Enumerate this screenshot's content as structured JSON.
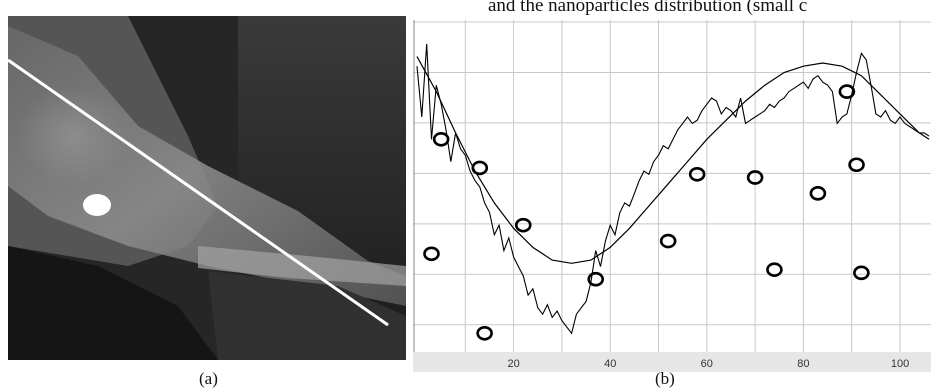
{
  "caption_fragment": "and the nanoparticles distribution (small c",
  "panel_labels": {
    "a": "(a)",
    "b": "(b)"
  },
  "colors": {
    "plot_bg": "#ffffff",
    "grid": "#c8c8c8",
    "curve": "#000000",
    "axis_bar": "#e6e6e6"
  },
  "chart_data": {
    "type": "line",
    "title": "",
    "xlabel": "",
    "ylabel": "",
    "xlim": [
      0,
      106
    ],
    "ylim": [
      0,
      100
    ],
    "x_ticks": [
      20,
      40,
      60,
      80,
      100
    ],
    "grid": true,
    "legend": "none",
    "series": [
      {
        "style": "noisy",
        "x": [
          0,
          1,
          2,
          3,
          4,
          5,
          6,
          7,
          8,
          9,
          10,
          11,
          12,
          13,
          14,
          15,
          16,
          17,
          18,
          19,
          20,
          21,
          22,
          23,
          24,
          25,
          26,
          27,
          28,
          29,
          30,
          31,
          32,
          33,
          34,
          35,
          36,
          37,
          38,
          39,
          40,
          41,
          42,
          43,
          44,
          45,
          46,
          47,
          48,
          49,
          50,
          51,
          52,
          53,
          54,
          55,
          56,
          57,
          58,
          59,
          60,
          61,
          62,
          63,
          64,
          65,
          66,
          67,
          68,
          69,
          70,
          71,
          72,
          73,
          74,
          75,
          76,
          77,
          78,
          79,
          80,
          81,
          82,
          83,
          84,
          85,
          86,
          87,
          88,
          89,
          90,
          91,
          92,
          93,
          94,
          95,
          96,
          97,
          98,
          99,
          100,
          101,
          102,
          103,
          104,
          105,
          106
        ],
        "y": [
          88,
          72,
          95,
          65,
          82,
          76,
          68,
          58,
          67,
          62,
          60,
          55,
          52,
          50,
          45,
          42,
          35,
          38,
          30,
          34,
          28,
          25,
          22,
          16,
          18,
          12,
          10,
          13,
          9,
          11,
          8,
          6,
          4,
          10,
          12,
          14,
          20,
          30,
          25,
          33,
          38,
          35,
          42,
          45,
          44,
          48,
          52,
          55,
          54,
          58,
          60,
          63,
          62,
          65,
          68,
          70,
          72,
          70,
          71,
          74,
          76,
          78,
          77,
          73,
          75,
          74,
          72,
          78,
          70,
          71,
          72,
          73,
          74,
          76,
          75,
          77,
          78,
          80,
          81,
          82,
          83,
          81,
          84,
          85,
          83,
          82,
          80,
          70,
          72,
          73,
          79,
          86,
          92,
          90,
          82,
          73,
          72,
          74,
          71,
          70,
          72,
          70,
          69,
          68,
          67,
          67,
          66
        ]
      },
      {
        "style": "smooth",
        "x": [
          0,
          4,
          8,
          12,
          16,
          20,
          24,
          28,
          32,
          36,
          40,
          44,
          48,
          52,
          56,
          60,
          64,
          68,
          72,
          76,
          80,
          84,
          88,
          92,
          96,
          100,
          104,
          106
        ],
        "y": [
          91,
          80,
          67,
          55,
          45,
          37,
          31,
          27,
          26,
          27,
          31,
          37,
          44,
          51,
          58,
          65,
          71,
          77,
          82,
          86,
          88,
          89,
          88,
          85,
          79,
          73,
          67,
          65
        ]
      }
    ],
    "nanoparticles": {
      "x": [
        5,
        13,
        22,
        37,
        52,
        58,
        70,
        74,
        83,
        89,
        91,
        92,
        14,
        3
      ],
      "y": [
        65,
        56,
        38,
        21,
        33,
        54,
        53,
        24,
        48,
        80,
        57,
        23,
        4,
        29
      ]
    }
  }
}
